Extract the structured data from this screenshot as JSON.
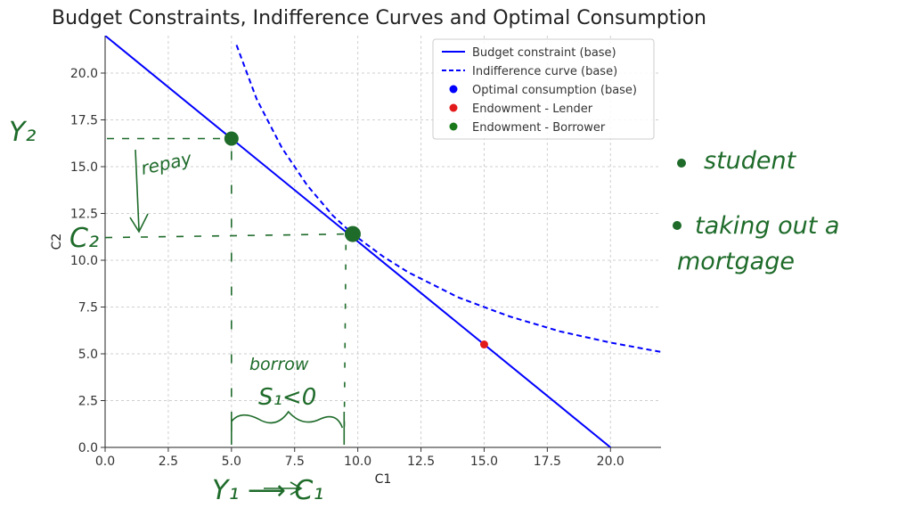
{
  "chart_data": {
    "type": "line",
    "title": "Budget Constraints, Indifference Curves and Optimal Consumption",
    "xlabel": "C1",
    "ylabel": "C2",
    "xlim": [
      0,
      22
    ],
    "ylim": [
      0,
      22
    ],
    "xticks": [
      "0.0",
      "2.5",
      "5.0",
      "7.5",
      "10.0",
      "12.5",
      "15.0",
      "17.5",
      "20.0"
    ],
    "yticks": [
      "0.0",
      "2.5",
      "5.0",
      "7.5",
      "10.0",
      "12.5",
      "15.0",
      "17.5",
      "20.0"
    ],
    "grid": true,
    "legend_position": "top-right",
    "series": [
      {
        "name": "Budget constraint (base)",
        "kind": "line",
        "style": "solid",
        "color": "#0000ff",
        "x": [
          0,
          20
        ],
        "y": [
          22,
          0
        ]
      },
      {
        "name": "Indifference curve (base)",
        "kind": "line",
        "style": "dashed",
        "color": "#0000ff",
        "x": [
          5.2,
          6,
          7,
          8,
          9,
          9.8,
          11,
          12,
          14,
          16,
          18,
          20,
          22
        ],
        "y": [
          21.5,
          18.6,
          16.0,
          14.0,
          12.4,
          11.4,
          10.2,
          9.35,
          8.0,
          7.0,
          6.2,
          5.6,
          5.1
        ]
      },
      {
        "name": "Optimal consumption (base)",
        "kind": "point",
        "color": "#0000ff",
        "x": [
          9.8
        ],
        "y": [
          11.4
        ]
      },
      {
        "name": "Endowment - Lender",
        "kind": "point",
        "color": "#e31a1c",
        "x": [
          15
        ],
        "y": [
          5.5
        ]
      },
      {
        "name": "Endowment - Borrower",
        "kind": "point",
        "color": "#1a7a1a",
        "x": [
          5
        ],
        "y": [
          16.5
        ]
      }
    ]
  },
  "annotations": {
    "y2": "Y₂",
    "c2": "C₂",
    "y1_to_c1": "Y₁ ⟶ C₁",
    "repay": "repay",
    "borrow": "borrow",
    "s1": "S₁<0",
    "bullet1": "student",
    "bullet2_line1": "taking out a",
    "bullet2_line2": "mortgage"
  }
}
